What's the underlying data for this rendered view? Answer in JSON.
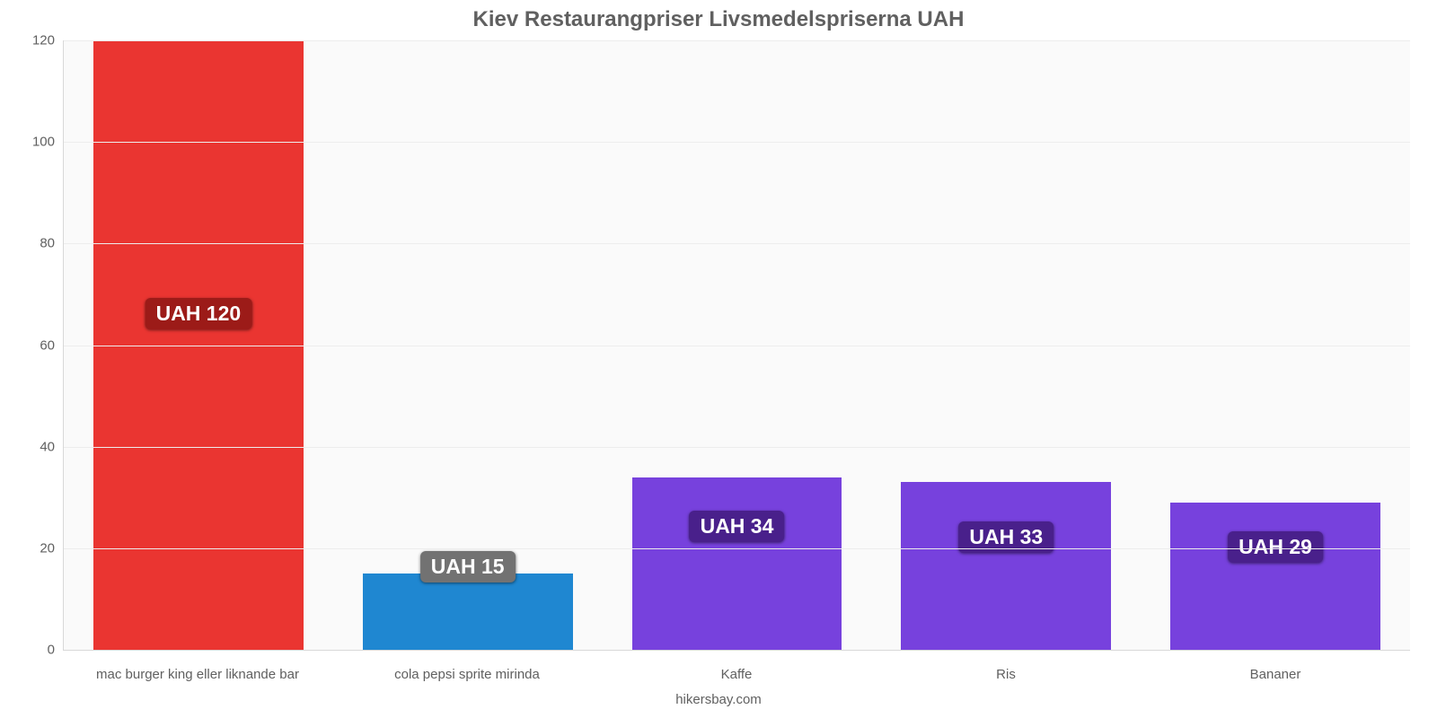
{
  "chart": {
    "type": "bar",
    "title": "Kiev Restaurangpriser Livsmedelspriserna UAH",
    "title_fontsize": 24,
    "title_color": "#606060",
    "footer": "hikersbay.com",
    "footer_fontsize": 15,
    "background_color": "#fafafa",
    "axis_color": "#d8d8d8",
    "grid_color": "#ededed",
    "label_color": "#606060",
    "tick_fontsize": 15,
    "xlabel_fontsize": 15,
    "value_label_fontsize": 23,
    "value_label_text_color": "#ffffff",
    "ylim": [
      0,
      120
    ],
    "ytick_step": 20,
    "bar_width_pct": 78,
    "currency_prefix": "UAH ",
    "categories": [
      "mac burger king eller liknande bar",
      "cola pepsi sprite mirinda",
      "Kaffe",
      "Ris",
      "Bananer"
    ],
    "values": [
      120,
      15,
      34,
      33,
      29
    ],
    "bar_colors": [
      "#ea3531",
      "#1f87d1",
      "#7741dd",
      "#7741dd",
      "#7741dd"
    ],
    "badge_colors": [
      "#9c1b18",
      "#727272",
      "#49208b",
      "#49208b",
      "#49208b"
    ],
    "badge_y_values": [
      66,
      16,
      24,
      22,
      20
    ]
  }
}
